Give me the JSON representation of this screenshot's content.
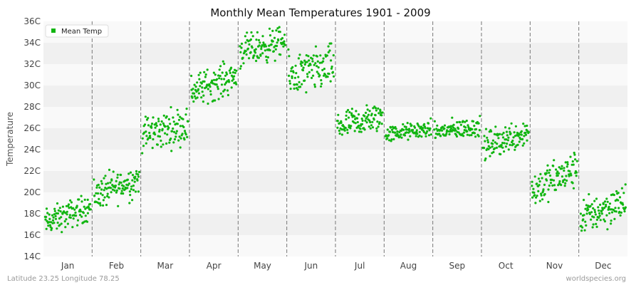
{
  "chart_data": {
    "type": "scatter",
    "title": "Monthly Mean Temperatures 1901 - 2009",
    "xlabel": "",
    "ylabel": "Temperature",
    "categories": [
      "Jan",
      "Feb",
      "Mar",
      "Apr",
      "May",
      "Jun",
      "Jul",
      "Aug",
      "Sep",
      "Oct",
      "Nov",
      "Dec"
    ],
    "ylim": [
      14,
      36
    ],
    "yticks": [
      14,
      16,
      18,
      20,
      22,
      24,
      26,
      28,
      30,
      32,
      34,
      36
    ],
    "ytick_labels": [
      "14C",
      "16C",
      "18C",
      "20C",
      "22C",
      "24C",
      "26C",
      "28C",
      "30C",
      "32C",
      "34C",
      "36C"
    ],
    "grid": "horizontal bands, dashed monthly separators",
    "legend": {
      "position": "top-left",
      "entries": [
        "Mean Temp"
      ]
    },
    "series": [
      {
        "name": "Mean Temp",
        "color": "#11b511",
        "monthly_summary": [
          {
            "month": "Jan",
            "center": 17.9,
            "min": 16.0,
            "max": 20.2,
            "trend": 0.15
          },
          {
            "month": "Feb",
            "center": 20.5,
            "min": 17.9,
            "max": 23.0,
            "trend": 0.15
          },
          {
            "month": "Mar",
            "center": 25.9,
            "min": 23.4,
            "max": 29.0,
            "trend": 0.1
          },
          {
            "month": "Apr",
            "center": 30.2,
            "min": 27.6,
            "max": 32.6,
            "trend": 0.15
          },
          {
            "month": "May",
            "center": 33.6,
            "min": 30.8,
            "max": 35.6,
            "trend": 0.1
          },
          {
            "month": "Jun",
            "center": 31.3,
            "min": 27.6,
            "max": 34.2,
            "trend": 0.1
          },
          {
            "month": "Jul",
            "center": 26.6,
            "min": 24.5,
            "max": 29.1,
            "trend": 0.1
          },
          {
            "month": "Aug",
            "center": 25.7,
            "min": 24.5,
            "max": 27.0,
            "trend": 0.05
          },
          {
            "month": "Sep",
            "center": 25.9,
            "min": 24.8,
            "max": 27.8,
            "trend": 0.05
          },
          {
            "month": "Oct",
            "center": 25.0,
            "min": 23.0,
            "max": 27.6,
            "trend": 0.15
          },
          {
            "month": "Nov",
            "center": 21.2,
            "min": 18.4,
            "max": 24.1,
            "trend": 0.2
          },
          {
            "month": "Dec",
            "center": 18.4,
            "min": 15.6,
            "max": 21.3,
            "trend": 0.15
          }
        ],
        "years_per_month": 109
      }
    ]
  },
  "footer": {
    "location": "Latitude 23.25 Longitude 78.25",
    "source": "worldspecies.org"
  }
}
